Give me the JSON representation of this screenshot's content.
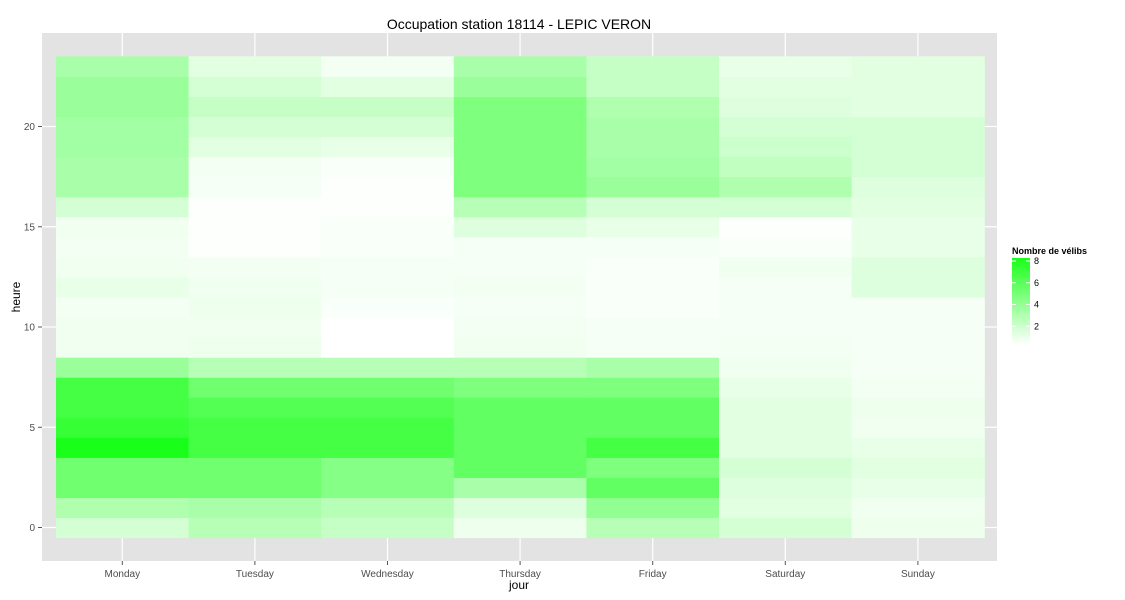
{
  "chart_data": {
    "type": "heatmap",
    "title": "Occupation station 18114 - LEPIC VERON",
    "xlabel": "jour",
    "ylabel": "heure",
    "categories": [
      "Monday",
      "Tuesday",
      "Wednesday",
      "Thursday",
      "Friday",
      "Saturday",
      "Sunday"
    ],
    "y": [
      0,
      1,
      2,
      3,
      4,
      5,
      6,
      7,
      8,
      9,
      10,
      11,
      12,
      13,
      14,
      15,
      16,
      17,
      18,
      19,
      20,
      21,
      22,
      23
    ],
    "y_ticks": [
      "0",
      "5",
      "10",
      "15",
      "20"
    ],
    "values": [
      [
        1.5,
        2.5,
        2.0,
        0.6,
        2.5,
        1.5,
        0.6
      ],
      [
        2.8,
        3.0,
        2.5,
        1.2,
        3.8,
        1.0,
        0.5
      ],
      [
        5.0,
        5.0,
        4.2,
        3.0,
        5.5,
        1.2,
        0.8
      ],
      [
        5.0,
        5.0,
        4.2,
        5.5,
        4.5,
        1.5,
        1.0
      ],
      [
        8.0,
        6.5,
        6.5,
        5.5,
        6.5,
        1.0,
        0.8
      ],
      [
        7.0,
        6.5,
        6.5,
        5.5,
        5.5,
        1.0,
        0.5
      ],
      [
        6.5,
        6.0,
        6.0,
        5.5,
        5.5,
        1.0,
        0.6
      ],
      [
        6.5,
        5.0,
        5.0,
        4.5,
        4.5,
        0.8,
        0.4
      ],
      [
        3.5,
        2.5,
        2.5,
        2.5,
        3.0,
        0.5,
        0.3
      ],
      [
        0.5,
        0.6,
        0.0,
        0.5,
        0.3,
        0.4,
        0.3
      ],
      [
        0.5,
        0.5,
        0.0,
        0.4,
        0.3,
        0.3,
        0.3
      ],
      [
        0.4,
        0.6,
        0.2,
        0.3,
        0.2,
        0.3,
        0.3
      ],
      [
        0.8,
        0.5,
        0.3,
        0.4,
        0.2,
        0.3,
        1.2
      ],
      [
        0.5,
        0.4,
        0.3,
        0.3,
        0.2,
        0.5,
        1.2
      ],
      [
        0.4,
        0.1,
        0.2,
        0.3,
        0.3,
        0.2,
        0.8
      ],
      [
        0.5,
        0.1,
        0.2,
        1.2,
        0.8,
        0.1,
        0.8
      ],
      [
        1.5,
        0.1,
        0.1,
        2.5,
        1.5,
        1.5,
        1.0
      ],
      [
        3.0,
        0.3,
        0.1,
        4.5,
        3.5,
        2.8,
        1.2
      ],
      [
        3.0,
        0.4,
        0.2,
        4.5,
        3.2,
        2.2,
        1.5
      ],
      [
        3.2,
        1.0,
        0.8,
        4.5,
        3.0,
        1.8,
        1.5
      ],
      [
        3.2,
        1.5,
        1.5,
        4.5,
        3.0,
        1.5,
        1.5
      ],
      [
        3.5,
        2.0,
        2.0,
        4.5,
        2.8,
        1.2,
        1.0
      ],
      [
        3.5,
        1.5,
        1.0,
        3.5,
        2.0,
        1.0,
        1.0
      ],
      [
        3.0,
        1.0,
        0.4,
        3.0,
        2.0,
        0.8,
        1.0
      ]
    ],
    "color_scale": {
      "low": "#ffffff",
      "high": "#19ff19",
      "min": 0,
      "max": 8
    },
    "legend": {
      "title": "Nombre de vélibs",
      "ticks": [
        2,
        4,
        6,
        8
      ],
      "placement": "right"
    },
    "colors": {
      "panel": "#e3e3e3",
      "grid": "#ffffff",
      "tick_text": "#4d4d4d"
    }
  }
}
